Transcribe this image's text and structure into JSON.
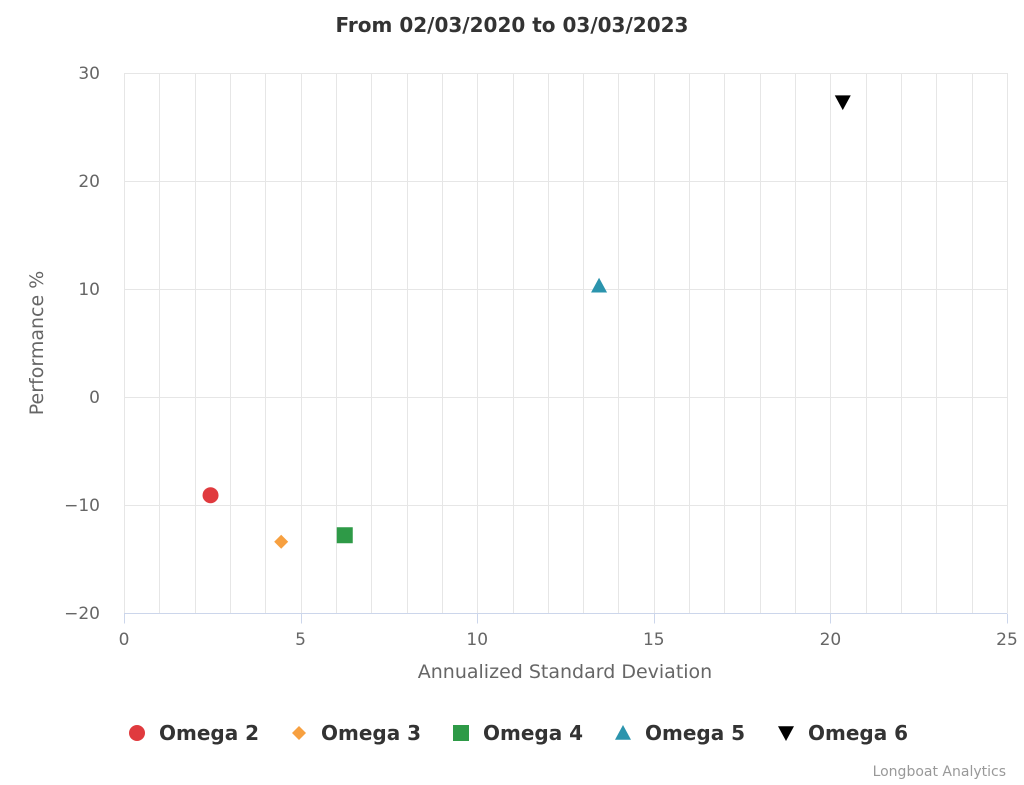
{
  "chart_data": {
    "type": "scatter",
    "title": "From 02/03/2020 to 03/03/2023",
    "xlabel": "Annualized Standard Deviation",
    "ylabel": "Performance %",
    "xlim": [
      0,
      25
    ],
    "ylim": [
      -20,
      30
    ],
    "x_ticks": [
      0,
      5,
      10,
      15,
      20,
      25
    ],
    "y_ticks": [
      -20,
      -10,
      0,
      10,
      20,
      30
    ],
    "x_tick_labels": [
      "0",
      "5",
      "10",
      "15",
      "20",
      "25"
    ],
    "y_tick_labels": [
      "−20",
      "−10",
      "0",
      "10",
      "20",
      "30"
    ],
    "x_minor_step": 1,
    "grid": true,
    "legend_position": "bottom-center",
    "series": [
      {
        "name": "Omega 2",
        "marker": "circle",
        "color": "#e03a3e",
        "x": 2.45,
        "y": -9.1
      },
      {
        "name": "Omega 3",
        "marker": "diamond",
        "color": "#f7a040",
        "x": 4.45,
        "y": -13.4
      },
      {
        "name": "Omega 4",
        "marker": "square",
        "color": "#2e9a47",
        "x": 6.25,
        "y": -12.8
      },
      {
        "name": "Omega 5",
        "marker": "triangle",
        "color": "#2b94ad",
        "x": 13.45,
        "y": 10.3
      },
      {
        "name": "Omega 6",
        "marker": "triangle-down",
        "color": "#000000",
        "x": 20.35,
        "y": 27.3
      }
    ]
  },
  "credits": "Longboat Analytics"
}
